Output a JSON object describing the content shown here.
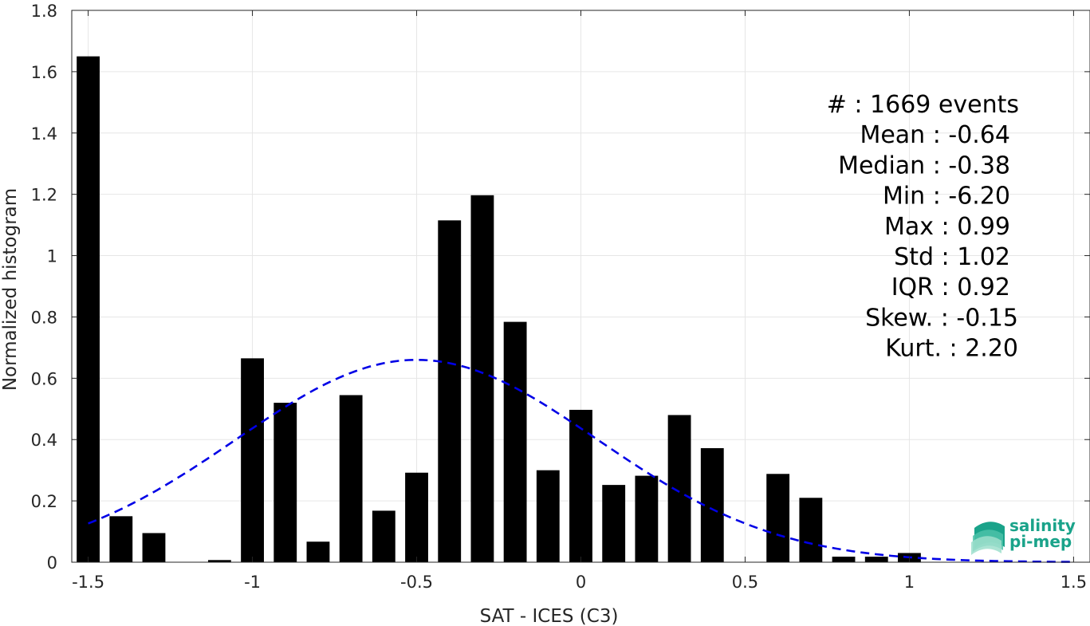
{
  "chart_data": {
    "type": "bar",
    "xlabel": "SAT - ICES (C3)",
    "ylabel": "Normalized histogram",
    "xlim": [
      -1.55,
      1.55
    ],
    "ylim": [
      0,
      1.8
    ],
    "grid": true,
    "x_ticks": [
      -1.5,
      -1,
      -0.5,
      0,
      0.5,
      1,
      1.5
    ],
    "x_tick_labels": [
      "-1.5",
      "-1",
      "-0.5",
      "0",
      "0.5",
      "1",
      "1.5"
    ],
    "y_ticks": [
      0,
      0.2,
      0.4,
      0.6,
      0.8,
      1,
      1.2,
      1.4,
      1.6,
      1.8
    ],
    "y_tick_labels": [
      "0",
      "0.2",
      "0.4",
      "0.6",
      "0.8",
      "1",
      "1.2",
      "1.4",
      "1.6",
      "1.8"
    ],
    "bar_color": "#000000",
    "bin_width": 0.1,
    "bar_width_fraction": 0.7,
    "bins": [
      {
        "x": -1.5,
        "value": 1.65
      },
      {
        "x": -1.4,
        "value": 0.15
      },
      {
        "x": -1.3,
        "value": 0.095
      },
      {
        "x": -1.2,
        "value": 0
      },
      {
        "x": -1.1,
        "value": 0.007
      },
      {
        "x": -1.0,
        "value": 0.665
      },
      {
        "x": -0.9,
        "value": 0.52
      },
      {
        "x": -0.8,
        "value": 0.067
      },
      {
        "x": -0.7,
        "value": 0.545
      },
      {
        "x": -0.6,
        "value": 0.168
      },
      {
        "x": -0.5,
        "value": 0.292
      },
      {
        "x": -0.4,
        "value": 1.115
      },
      {
        "x": -0.3,
        "value": 1.197
      },
      {
        "x": -0.2,
        "value": 0.784
      },
      {
        "x": -0.1,
        "value": 0.3
      },
      {
        "x": 0.0,
        "value": 0.497
      },
      {
        "x": 0.1,
        "value": 0.252
      },
      {
        "x": 0.2,
        "value": 0.282
      },
      {
        "x": 0.3,
        "value": 0.48
      },
      {
        "x": 0.4,
        "value": 0.372
      },
      {
        "x": 0.5,
        "value": 0
      },
      {
        "x": 0.6,
        "value": 0.288
      },
      {
        "x": 0.7,
        "value": 0.21
      },
      {
        "x": 0.8,
        "value": 0.018
      },
      {
        "x": 0.9,
        "value": 0.018
      },
      {
        "x": 1.0,
        "value": 0.03
      }
    ],
    "fit_curve": {
      "style": "dashed",
      "color": "#0000e6",
      "mean": -0.5,
      "std": 0.55,
      "peak": 0.66,
      "x_range": [
        -1.5,
        1.5
      ]
    },
    "stats": [
      "#  : 1669 events",
      "Mean : -0.64",
      "Median : -0.38",
      "Min : -6.20",
      "Max : 0.99",
      "Std : 1.02",
      "IQR : 0.92",
      "Skew. : -0.15",
      "Kurt. : 2.20"
    ]
  },
  "logo": {
    "line1": "salinity",
    "line2": "pi-mep",
    "color": "#1aa38a"
  }
}
